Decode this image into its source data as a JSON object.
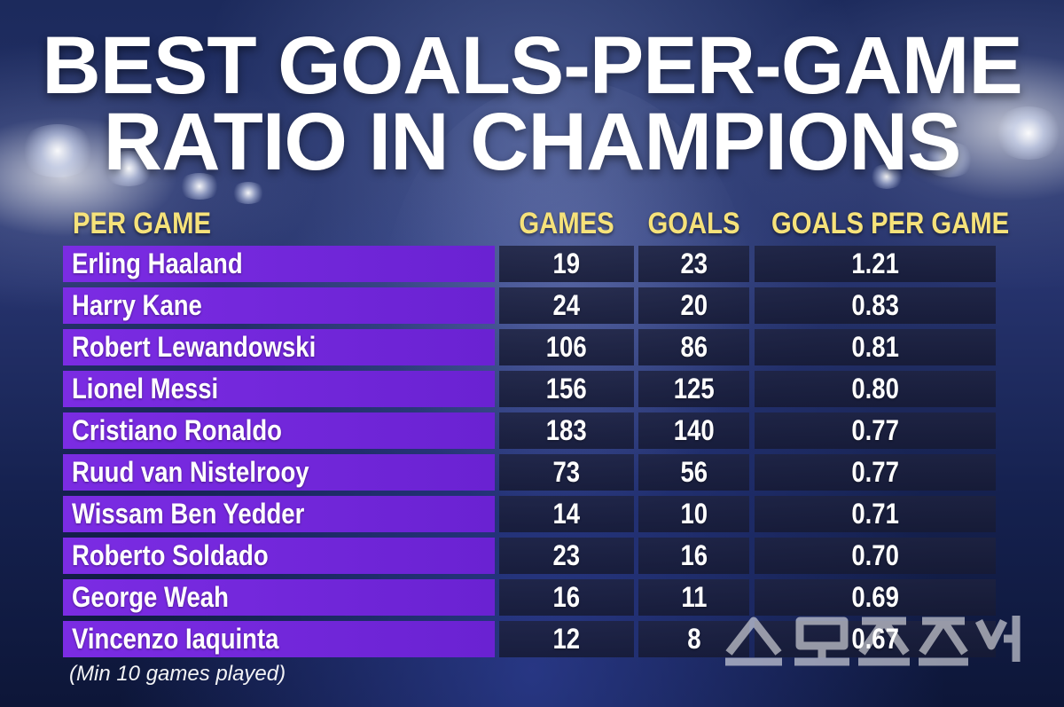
{
  "title_lines": [
    "BEST GOALS-PER-GAME",
    "RATIO IN CHAMPIONS"
  ],
  "footnote": "(Min 10 games played)",
  "colors": {
    "name_band": "#7b2ce3",
    "header_text": "#f6e27a",
    "value_band": "#1e223e"
  },
  "chart_data": {
    "type": "table",
    "title": "BEST GOALS-PER-GAME RATIO IN CHAMPIONS",
    "columns": [
      "PER GAME",
      "GAMES",
      "GOALS",
      "GOALS PER GAME"
    ],
    "rows": [
      [
        "Erling Haaland",
        "19",
        "23",
        "1.21"
      ],
      [
        "Harry Kane",
        "24",
        "20",
        "0.83"
      ],
      [
        "Robert Lewandowski",
        "106",
        "86",
        "0.81"
      ],
      [
        "Lionel Messi",
        "156",
        "125",
        "0.80"
      ],
      [
        "Cristiano Ronaldo",
        "183",
        "140",
        "0.77"
      ],
      [
        "Ruud van Nistelrooy",
        "73",
        "56",
        "0.77"
      ],
      [
        "Wissam Ben Yedder",
        "14",
        "10",
        "0.71"
      ],
      [
        "Roberto Soldado",
        "23",
        "16",
        "0.70"
      ],
      [
        "George Weah",
        "16",
        "11",
        "0.69"
      ],
      [
        "Vincenzo Iaquinta",
        "12",
        "8",
        "0.67"
      ]
    ]
  }
}
